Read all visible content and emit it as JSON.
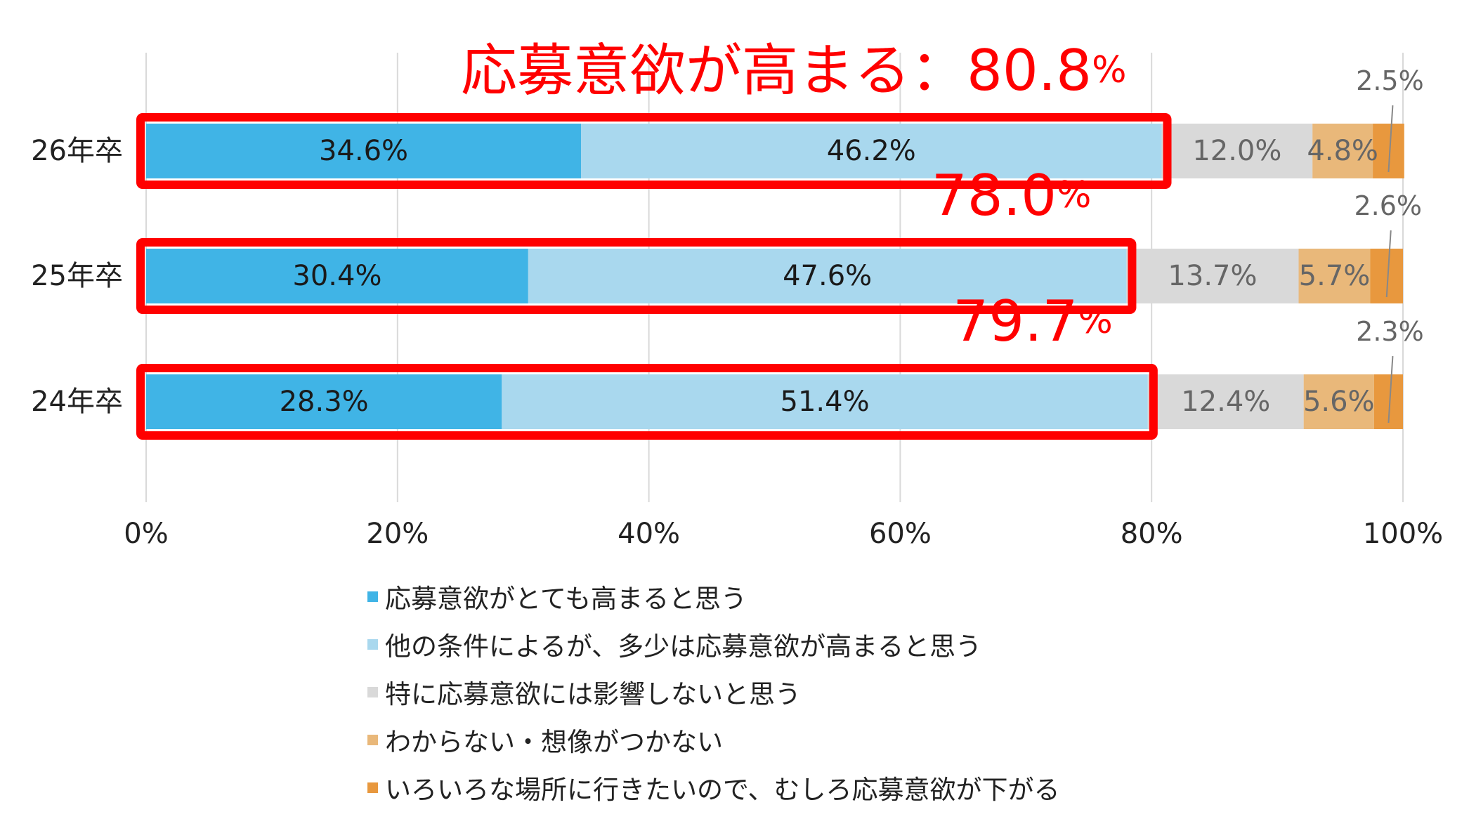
{
  "chart_data": {
    "type": "bar",
    "orientation": "horizontal",
    "stacked": true,
    "categories": [
      "26年卒",
      "25年卒",
      "24年卒"
    ],
    "series": [
      {
        "name": "応募意欲がとても高まると思う",
        "color": "#40b4e6",
        "values": [
          34.6,
          30.4,
          28.3
        ],
        "labels": [
          "34.6%",
          "30.4%",
          "28.3%"
        ]
      },
      {
        "name": "他の条件によるが、多少は応募意欲が高まると思う",
        "color": "#a9d8ee",
        "values": [
          46.2,
          47.6,
          51.4
        ],
        "labels": [
          "46.2%",
          "47.6%",
          "51.4%"
        ]
      },
      {
        "name": "特に応募意欲には影響しないと思う",
        "color": "#d9d9d9",
        "values": [
          12.0,
          13.7,
          12.4
        ],
        "labels": [
          "12.0%",
          "13.7%",
          "12.4%"
        ]
      },
      {
        "name": "わからない・想像がつかない",
        "color": "#e9b87a",
        "values": [
          4.8,
          5.7,
          5.6
        ],
        "labels": [
          "4.8%",
          "5.7%",
          "5.6%"
        ]
      },
      {
        "name": "いろいろな場所に行きたいので、むしろ応募意欲が下がる",
        "color": "#e8983e",
        "values": [
          2.5,
          2.6,
          2.3
        ],
        "labels": [
          "2.5%",
          "2.6%",
          "2.3%"
        ]
      }
    ],
    "xlim": [
      0,
      100
    ],
    "x_ticks": [
      "0%",
      "20%",
      "40%",
      "60%",
      "80%",
      "100%"
    ],
    "grid": "vertical",
    "legend_position": "bottom",
    "annotations": [
      {
        "row": 0,
        "text": "応募意欲が高まる：80.8",
        "unit": "%",
        "value": 80.8
      },
      {
        "row": 1,
        "text": "78.0",
        "unit": "%",
        "value": 78.0
      },
      {
        "row": 2,
        "text": "79.7",
        "unit": "%",
        "value": 79.7
      }
    ],
    "highlight_color": "#ff0000"
  }
}
